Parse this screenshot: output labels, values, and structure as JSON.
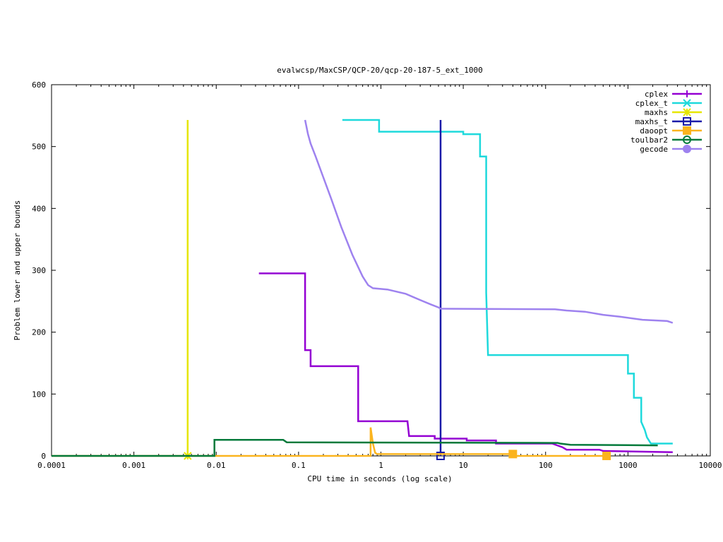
{
  "chart_data": {
    "type": "line",
    "title": "evalwcsp/MaxCSP/QCP-20/qcp-20-187-5_ext_1000",
    "xlabel": "CPU time in seconds (log scale)",
    "ylabel": "Problem lower and upper bounds",
    "xscale": "log",
    "xlim": [
      0.0001,
      10000
    ],
    "ylim": [
      0,
      600
    ],
    "xticks": [
      {
        "value": 0.0001,
        "label": "0.0001"
      },
      {
        "value": 0.001,
        "label": "0.001"
      },
      {
        "value": 0.01,
        "label": "0.01"
      },
      {
        "value": 0.1,
        "label": "0.1"
      },
      {
        "value": 1,
        "label": "1"
      },
      {
        "value": 10,
        "label": "10"
      },
      {
        "value": 100,
        "label": "100"
      },
      {
        "value": 1000,
        "label": "1000"
      },
      {
        "value": 10000,
        "label": "10000"
      }
    ],
    "yticks": [
      {
        "value": 0,
        "label": "0"
      },
      {
        "value": 100,
        "label": "100"
      },
      {
        "value": 200,
        "label": "200"
      },
      {
        "value": 300,
        "label": "300"
      },
      {
        "value": 400,
        "label": "400"
      },
      {
        "value": 500,
        "label": "500"
      },
      {
        "value": 600,
        "label": "600"
      }
    ],
    "grid": false,
    "legend_position": "top-right",
    "series": [
      {
        "name": "cplex",
        "color": "#9400d3",
        "marker": "plus",
        "points": [
          [
            0.033,
            295
          ],
          [
            0.12,
            295
          ],
          [
            0.12,
            171
          ],
          [
            0.14,
            171
          ],
          [
            0.14,
            145
          ],
          [
            0.53,
            145
          ],
          [
            0.53,
            56
          ],
          [
            2.1,
            56
          ],
          [
            2.2,
            32
          ],
          [
            4.5,
            32
          ],
          [
            4.5,
            28
          ],
          [
            11,
            28
          ],
          [
            11,
            25
          ],
          [
            25,
            25
          ],
          [
            25,
            20
          ],
          [
            120,
            20
          ],
          [
            160,
            14
          ],
          [
            180,
            10
          ],
          [
            450,
            10
          ],
          [
            500,
            8
          ],
          [
            3500,
            6
          ]
        ],
        "markers": []
      },
      {
        "name": "cplex_t",
        "color": "#1ed9dc",
        "marker": "x",
        "points": [
          [
            0.34,
            543
          ],
          [
            0.95,
            543
          ],
          [
            0.95,
            524
          ],
          [
            10,
            524
          ],
          [
            10,
            520
          ],
          [
            16,
            520
          ],
          [
            16,
            484
          ],
          [
            19,
            484
          ],
          [
            19,
            264
          ],
          [
            20,
            163
          ],
          [
            1000,
            163
          ],
          [
            1000,
            133
          ],
          [
            1180,
            133
          ],
          [
            1180,
            94
          ],
          [
            1450,
            94
          ],
          [
            1450,
            55
          ],
          [
            1600,
            42
          ],
          [
            1700,
            30
          ],
          [
            1900,
            20
          ],
          [
            3500,
            20
          ]
        ],
        "markers": []
      },
      {
        "name": "maxhs",
        "color": "#e6e600",
        "marker": "star",
        "points": [
          [
            0.0045,
            543
          ],
          [
            0.0045,
            0
          ]
        ],
        "markers": [
          [
            0.0045,
            0
          ]
        ]
      },
      {
        "name": "maxhs_t",
        "color": "#1a1aa8",
        "marker": "square",
        "points": [
          [
            5.3,
            543
          ],
          [
            5.3,
            0
          ]
        ],
        "markers": [
          [
            5.3,
            0
          ]
        ]
      },
      {
        "name": "daoopt",
        "color": "#fbb41e",
        "marker": "filled-square",
        "points": [
          [
            0.0001,
            0
          ],
          [
            0.75,
            0
          ],
          [
            0.75,
            46
          ],
          [
            0.8,
            20
          ],
          [
            0.85,
            5
          ],
          [
            0.9,
            3
          ],
          [
            40,
            3
          ],
          [
            40,
            0
          ],
          [
            550,
            0
          ]
        ],
        "markers": [
          [
            40,
            3
          ],
          [
            550,
            0
          ]
        ]
      },
      {
        "name": "toulbar2",
        "color": "#047a3b",
        "marker": "circle",
        "points": [
          [
            0.0001,
            0
          ],
          [
            0.0095,
            0
          ],
          [
            0.0095,
            26
          ],
          [
            0.065,
            26
          ],
          [
            0.07,
            23
          ],
          [
            0.072,
            22
          ],
          [
            140,
            21
          ],
          [
            150,
            20
          ],
          [
            200,
            18
          ],
          [
            2300,
            17
          ]
        ],
        "markers": []
      },
      {
        "name": "gecode",
        "color": "#9e82ef",
        "marker": "filled-circle",
        "points": [
          [
            0.12,
            543
          ],
          [
            0.13,
            520
          ],
          [
            0.14,
            505
          ],
          [
            0.16,
            485
          ],
          [
            0.2,
            450
          ],
          [
            0.25,
            415
          ],
          [
            0.33,
            370
          ],
          [
            0.45,
            325
          ],
          [
            0.6,
            290
          ],
          [
            0.7,
            276
          ],
          [
            0.8,
            271
          ],
          [
            1.2,
            269
          ],
          [
            2,
            262
          ],
          [
            3,
            252
          ],
          [
            4,
            245
          ],
          [
            5,
            240
          ],
          [
            5.3,
            238
          ],
          [
            130,
            237
          ],
          [
            180,
            235
          ],
          [
            300,
            233
          ],
          [
            500,
            228
          ],
          [
            800,
            225
          ],
          [
            1500,
            220
          ],
          [
            3000,
            218
          ],
          [
            3500,
            215
          ]
        ],
        "markers": []
      }
    ]
  }
}
